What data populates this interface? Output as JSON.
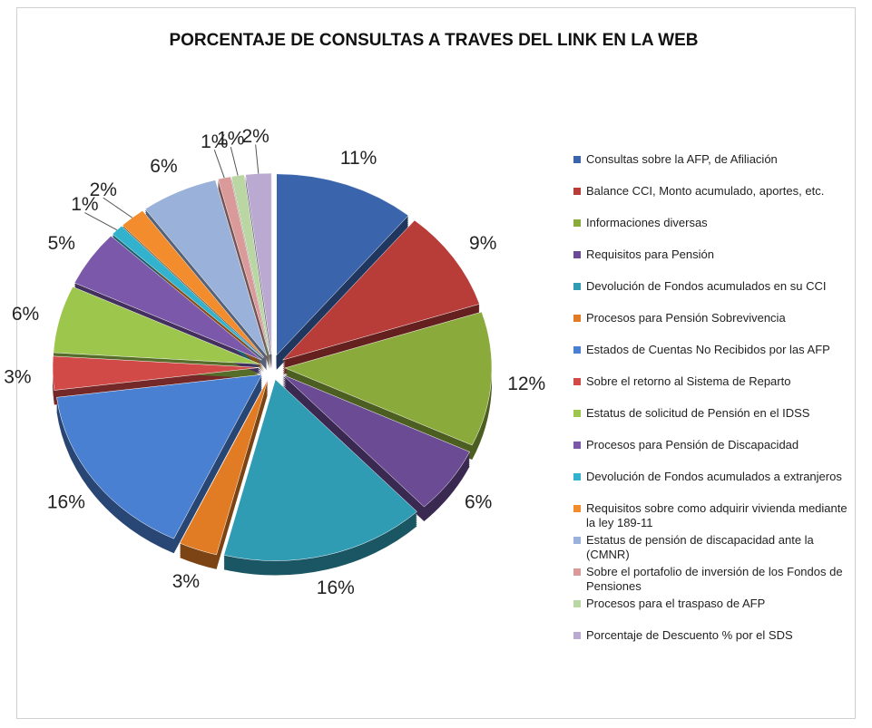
{
  "chart_data": {
    "type": "pie",
    "title": "PORCENTAJE DE CONSULTAS A TRAVES DEL LINK EN LA WEB",
    "categories": [
      "Consultas sobre la AFP, de Afiliación",
      "Balance CCI, Monto acumulado, aportes, etc.",
      "Informaciones diversas",
      "Requisitos para Pensión",
      "Devolución de Fondos acumulados en su CCI",
      "Procesos para Pensión Sobrevivencia",
      "Estados de Cuentas No Recibidos por las AFP",
      "Sobre el retorno al Sistema de Reparto",
      "Estatus de solicitud de Pensión en el IDSS",
      "Procesos para Pensión de Discapacidad",
      "Devolución de Fondos acumulados a extranjeros",
      "Requisitos sobre como adquirir vivienda mediante la ley 189-11",
      "Estatus de pensión de discapacidad ante la (CMNR)",
      "Sobre el portafolio de inversión de los Fondos de Pensiones",
      "Procesos para el traspaso de AFP",
      "Porcentaje de Descuento % por el SDS"
    ],
    "values": [
      11,
      9,
      12,
      6,
      16,
      3,
      16,
      3,
      6,
      5,
      1,
      2,
      6,
      1,
      1,
      2
    ],
    "value_labels": [
      "11%",
      "9%",
      "12%",
      "6%",
      "16%",
      "3%",
      "16%",
      "3%",
      "6%",
      "5%",
      "1%",
      "2%",
      "6%",
      "1%",
      "1%",
      "2%"
    ],
    "colors": [
      "#3a64ac",
      "#b83c38",
      "#8aaa3c",
      "#6a4b94",
      "#2f9cb4",
      "#e27c24",
      "#4a80d2",
      "#d24a48",
      "#9dc64c",
      "#7c58aa",
      "#33b2ce",
      "#f28c2c",
      "#9ab2da",
      "#da9a9a",
      "#bad6a2",
      "#baaad2"
    ]
  }
}
